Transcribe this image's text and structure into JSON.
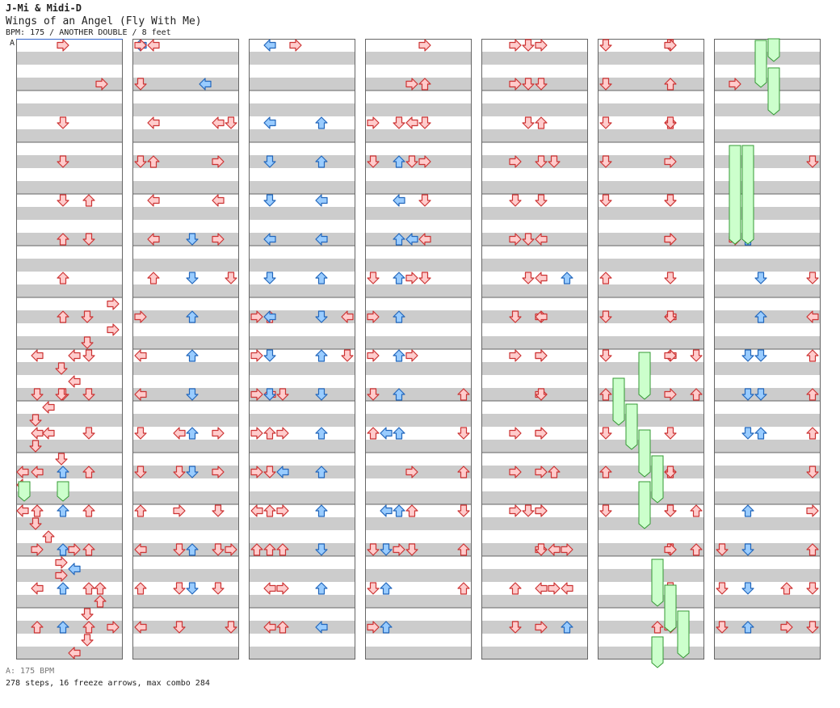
{
  "header": {
    "artist": "J-Mi & Midi-D",
    "title": "Wings of an Angel (Fly With Me)",
    "info": "BPM: 175 / ANOTHER DOUBLE / 8 feet"
  },
  "bpm_marker": {
    "label": "A",
    "bpm": 175
  },
  "footer": {
    "bpm_legend": "A: 175 BPM",
    "stats": "278 steps, 16 freeze arrows, max combo 284"
  },
  "columns": 7,
  "colors": {
    "red_arrow": "#ffcccc",
    "red_outline": "#cc3333",
    "blue_arrow": "#99ccff",
    "blue_outline": "#2266bb",
    "freeze_fill": "#ccffcc",
    "freeze_outline": "#339933",
    "band_gray": "#cccccc",
    "measure_line": "#666666"
  },
  "notes": [
    [
      8,
      "L",
      0,
      "blue"
    ],
    [
      8,
      "R",
      7,
      "red"
    ],
    [
      8,
      "L",
      8,
      "red"
    ],
    [
      8,
      "L",
      9,
      "red"
    ],
    [
      8,
      "D",
      10,
      "red"
    ],
    [
      8,
      "D",
      11,
      "red"
    ],
    [
      8,
      "U",
      12,
      "red"
    ],
    [
      8,
      "L",
      13,
      "red"
    ],
    [
      8,
      "U",
      14,
      "red"
    ],
    [
      8,
      "L",
      15,
      "red"
    ],
    [
      9,
      "L",
      0,
      "red"
    ],
    [
      9,
      "L",
      2,
      "red"
    ],
    [
      9,
      "U",
      3,
      "red"
    ],
    [
      9,
      "L",
      4,
      "red"
    ],
    [
      9,
      "L",
      5,
      "red"
    ],
    [
      9,
      "U",
      6,
      "red"
    ],
    [
      9,
      "U",
      7,
      "red"
    ],
    [
      9,
      "L",
      9,
      "red"
    ],
    [
      9,
      "U",
      10,
      "red"
    ],
    [
      9,
      "D",
      11,
      "red"
    ],
    [
      9,
      "U",
      12,
      "red"
    ],
    [
      9,
      "U",
      13,
      "red"
    ],
    [
      9,
      "L",
      14,
      "red"
    ],
    [
      9,
      "L",
      15,
      "red"
    ],
    [
      10,
      "D",
      9,
      "red"
    ],
    [
      10,
      "R",
      10,
      "red"
    ],
    [
      10,
      "L",
      11,
      "blue"
    ],
    [
      10,
      "R",
      12,
      "red"
    ],
    [
      10,
      "U",
      13,
      "red"
    ],
    [
      10,
      "R",
      14,
      "red"
    ],
    [
      10,
      "U",
      15,
      "red"
    ],
    [
      11,
      "R",
      0,
      "red"
    ],
    [
      11,
      "R",
      1,
      "red"
    ],
    [
      11,
      "L",
      2,
      "red"
    ],
    [
      11,
      "D",
      3,
      "red"
    ],
    [
      11,
      "L",
      5,
      "blue"
    ],
    [
      11,
      "R",
      6,
      "red"
    ],
    [
      11,
      "R",
      8,
      "red"
    ],
    [
      11,
      "R",
      11,
      "red"
    ],
    [
      11,
      "U",
      12,
      "red"
    ],
    [
      11,
      "D",
      13,
      "red"
    ],
    [
      12,
      "R",
      0,
      "red"
    ],
    [
      12,
      "U",
      1,
      "red"
    ],
    [
      12,
      "D",
      2,
      "red"
    ],
    [
      12,
      "R",
      3,
      "red"
    ],
    [
      12,
      "D",
      4,
      "red"
    ],
    [
      12,
      "L",
      5,
      "red"
    ],
    [
      12,
      "D",
      6,
      "red"
    ],
    [
      12,
      "R",
      7,
      "red"
    ],
    [
      12,
      "R",
      8,
      "red"
    ],
    [
      12,
      "R",
      9,
      "red"
    ],
    [
      12,
      "R",
      10,
      "red"
    ],
    [
      12,
      "R",
      12,
      "red"
    ],
    [
      12,
      "R",
      13,
      "red"
    ],
    [
      12,
      "L",
      14,
      "red"
    ],
    [
      12,
      "R",
      15,
      "red"
    ],
    [
      13,
      "D",
      3,
      "red"
    ],
    [
      13,
      "U",
      11,
      "red"
    ],
    [
      13,
      "L",
      13,
      "red"
    ],
    [
      13,
      "R",
      14,
      "red"
    ],
    [
      14,
      "U",
      6,
      "blue"
    ],
    [
      14,
      "R",
      13,
      "red"
    ],
    [
      14,
      "L",
      14,
      "red"
    ],
    [
      14,
      "U",
      15,
      "blue"
    ],
    [
      15,
      "D",
      8,
      "red"
    ],
    [
      15,
      "U",
      9,
      "red"
    ],
    [
      15,
      "U",
      12,
      "red"
    ],
    [
      15,
      "U",
      13,
      "red"
    ],
    [
      16,
      "D",
      0,
      "red"
    ],
    [
      16,
      "D",
      1,
      "red"
    ],
    [
      16,
      "D",
      2,
      "red"
    ],
    [
      16,
      "D",
      3,
      "red"
    ],
    [
      16,
      "D",
      4,
      "red"
    ],
    [
      16,
      "U",
      6,
      "red"
    ],
    [
      16,
      "D",
      7,
      "red"
    ],
    [
      16,
      "D",
      8,
      "red"
    ],
    [
      16,
      "U",
      9,
      "red"
    ],
    [
      16,
      "D",
      10,
      "red"
    ],
    [
      16,
      "U",
      11,
      "red"
    ],
    [
      16,
      "D",
      12,
      "red"
    ],
    [
      16,
      "D",
      13,
      "red"
    ],
    [
      16,
      "D",
      14,
      "red"
    ],
    [
      16,
      "D",
      15,
      "red"
    ],
    [
      18,
      "U",
      5,
      "blue"
    ],
    [
      18,
      "D",
      8,
      "blue"
    ],
    [
      18,
      "D",
      9,
      "blue"
    ],
    [
      18,
      "D",
      10,
      "blue"
    ],
    [
      18,
      "U",
      12,
      "blue"
    ],
    [
      18,
      "D",
      13,
      "blue"
    ],
    [
      18,
      "D",
      14,
      "blue"
    ],
    [
      18,
      "U",
      15,
      "blue"
    ],
    [
      19,
      "D",
      6,
      "blue"
    ],
    [
      19,
      "U",
      7,
      "blue"
    ],
    [
      19,
      "D",
      8,
      "blue"
    ],
    [
      19,
      "D",
      9,
      "blue"
    ],
    [
      19,
      "U",
      10,
      "blue"
    ],
    [
      19,
      "U",
      11,
      "blue"
    ],
    [
      19,
      "U",
      12,
      "blue"
    ],
    [
      19,
      "U",
      13,
      "blue"
    ],
    [
      19,
      "U",
      14,
      "blue"
    ],
    [
      19,
      "U",
      15,
      "blue"
    ],
    [
      21,
      "U",
      4,
      "red"
    ],
    [
      21,
      "D",
      5,
      "red"
    ],
    [
      21,
      "D",
      8,
      "red"
    ],
    [
      21,
      "D",
      9,
      "red"
    ],
    [
      21,
      "D",
      10,
      "red"
    ],
    [
      21,
      "U",
      11,
      "red"
    ],
    [
      21,
      "U",
      12,
      "red"
    ],
    [
      21,
      "U",
      13,
      "red"
    ],
    [
      21,
      "U",
      14,
      "red"
    ],
    [
      21,
      "U",
      15,
      "red"
    ],
    [
      22,
      "R",
      1,
      "red"
    ],
    [
      22,
      "L",
      2,
      "red"
    ],
    [
      22,
      "R",
      3,
      "red"
    ],
    [
      22,
      "L",
      4,
      "red"
    ],
    [
      22,
      "R",
      5,
      "red"
    ],
    [
      22,
      "R",
      10,
      "red"
    ],
    [
      22,
      "R",
      11,
      "red"
    ],
    [
      22,
      "D",
      12,
      "red"
    ],
    [
      22,
      "D",
      13,
      "red"
    ],
    [
      22,
      "D",
      14,
      "red"
    ],
    [
      23,
      "D",
      2,
      "red"
    ],
    [
      23,
      "D",
      6,
      "red"
    ],
    [
      23,
      "R",
      13,
      "red"
    ],
    [
      23,
      "D",
      15,
      "red"
    ],
    [
      24,
      "R",
      0,
      "red"
    ],
    [
      24,
      "D",
      1,
      "red"
    ],
    [
      24,
      "D",
      3,
      "red"
    ],
    [
      24,
      "R",
      7,
      "red"
    ],
    [
      24,
      "R",
      8,
      "red"
    ],
    [
      24,
      "R",
      9,
      "red"
    ],
    [
      24,
      "R",
      10,
      "red"
    ],
    [
      24,
      "R",
      11,
      "red"
    ],
    [
      24,
      "L",
      12,
      "red"
    ],
    [
      24,
      "U",
      13,
      "red"
    ],
    [
      25,
      "L",
      0,
      "blue"
    ],
    [
      25,
      "L",
      2,
      "blue"
    ],
    [
      25,
      "D",
      3,
      "blue"
    ],
    [
      25,
      "D",
      4,
      "blue"
    ],
    [
      25,
      "L",
      5,
      "blue"
    ],
    [
      25,
      "D",
      6,
      "blue"
    ],
    [
      25,
      "L",
      7,
      "blue"
    ],
    [
      25,
      "D",
      8,
      "blue"
    ],
    [
      25,
      "D",
      9,
      "blue"
    ],
    [
      25,
      "L",
      10,
      "blue"
    ],
    [
      25,
      "L",
      12,
      "blue"
    ],
    [
      25,
      "D",
      13,
      "blue"
    ],
    [
      25,
      "U",
      14,
      "blue"
    ],
    [
      25,
      "U",
      15,
      "blue"
    ],
    [
      26,
      "D",
      2,
      "red"
    ],
    [
      26,
      "U",
      3,
      "blue"
    ],
    [
      26,
      "L",
      4,
      "blue"
    ],
    [
      26,
      "U",
      5,
      "blue"
    ],
    [
      26,
      "U",
      6,
      "blue"
    ],
    [
      26,
      "U",
      7,
      "blue"
    ],
    [
      26,
      "U",
      8,
      "blue"
    ],
    [
      26,
      "U",
      9,
      "blue"
    ],
    [
      26,
      "U",
      10,
      "blue"
    ],
    [
      26,
      "U",
      12,
      "blue"
    ],
    [
      26,
      "R",
      13,
      "red"
    ],
    [
      26,
      "U",
      14,
      "red"
    ],
    [
      26,
      "D",
      15,
      "red"
    ],
    [
      28,
      "R",
      0,
      "red"
    ],
    [
      28,
      "D",
      1,
      "red"
    ],
    [
      28,
      "U",
      2,
      "red"
    ],
    [
      28,
      "D",
      3,
      "red"
    ],
    [
      28,
      "D",
      4,
      "red"
    ],
    [
      28,
      "L",
      5,
      "red"
    ],
    [
      28,
      "L",
      6,
      "red"
    ],
    [
      28,
      "L",
      7,
      "red"
    ],
    [
      28,
      "R",
      8,
      "red"
    ],
    [
      28,
      "D",
      9,
      "red"
    ],
    [
      28,
      "R",
      10,
      "red"
    ],
    [
      28,
      "R",
      11,
      "red"
    ],
    [
      28,
      "R",
      12,
      "red"
    ],
    [
      28,
      "D",
      13,
      "red"
    ],
    [
      28,
      "U",
      14,
      "red"
    ],
    [
      28,
      "U",
      15,
      "red"
    ],
    [
      29,
      "D",
      0,
      "red"
    ],
    [
      29,
      "U",
      1,
      "red"
    ],
    [
      29,
      "U",
      2,
      "red"
    ],
    [
      29,
      "R",
      3,
      "red"
    ],
    [
      29,
      "D",
      4,
      "red"
    ],
    [
      29,
      "R",
      5,
      "red"
    ],
    [
      29,
      "D",
      6,
      "red"
    ],
    [
      29,
      "L",
      7,
      "red"
    ],
    [
      29,
      "L",
      8,
      "red"
    ],
    [
      29,
      "R",
      9,
      "red"
    ],
    [
      29,
      "D",
      10,
      "red"
    ],
    [
      29,
      "U",
      11,
      "red"
    ],
    [
      29,
      "D",
      12,
      "red"
    ],
    [
      29,
      "D",
      13,
      "red"
    ],
    [
      29,
      "U",
      14,
      "red"
    ],
    [
      29,
      "R",
      15,
      "red"
    ],
    [
      31,
      "D",
      3,
      "red"
    ],
    [
      31,
      "D",
      6,
      "red"
    ],
    [
      31,
      "L",
      7,
      "red"
    ],
    [
      31,
      "U",
      8,
      "red"
    ],
    [
      31,
      "U",
      9,
      "red"
    ],
    [
      31,
      "U",
      10,
      "red"
    ],
    [
      31,
      "D",
      11,
      "red"
    ],
    [
      31,
      "R",
      12,
      "red"
    ],
    [
      31,
      "U",
      13,
      "red"
    ],
    [
      31,
      "D",
      14,
      "red"
    ],
    [
      31,
      "D",
      15,
      "red"
    ],
    [
      33,
      "R",
      1,
      "red"
    ],
    [
      33,
      "U",
      4,
      "red"
    ],
    [
      33,
      "R",
      5,
      "red"
    ],
    [
      33,
      "L",
      8,
      "red"
    ],
    [
      33,
      "D",
      9,
      "red"
    ],
    [
      33,
      "L",
      10,
      "red"
    ],
    [
      33,
      "L",
      11,
      "red"
    ],
    [
      33,
      "U",
      12,
      "red"
    ],
    [
      33,
      "R",
      13,
      "red"
    ],
    [
      33,
      "L",
      14,
      "red"
    ],
    [
      33,
      "U",
      15,
      "red"
    ],
    [
      35,
      "R",
      0,
      "red"
    ],
    [
      35,
      "D",
      2,
      "red"
    ],
    [
      35,
      "D",
      3,
      "red"
    ],
    [
      35,
      "D",
      4,
      "red"
    ],
    [
      35,
      "U",
      5,
      "red"
    ],
    [
      35,
      "U",
      6,
      "red"
    ],
    [
      35,
      "U",
      7,
      "red"
    ],
    [
      35,
      "D",
      9,
      "red"
    ],
    [
      35,
      "L",
      10,
      "red"
    ],
    [
      35,
      "D",
      11,
      "red"
    ],
    [
      35,
      "R",
      12,
      "red"
    ],
    [
      35,
      "D",
      13,
      "red"
    ],
    [
      35,
      "D",
      14,
      "red"
    ],
    [
      35,
      "D",
      15,
      "red"
    ],
    [
      36,
      "D",
      5,
      "blue"
    ],
    [
      36,
      "D",
      6,
      "blue"
    ],
    [
      36,
      "U",
      7,
      "blue"
    ],
    [
      36,
      "U",
      8,
      "blue"
    ],
    [
      36,
      "D",
      9,
      "blue"
    ],
    [
      36,
      "U",
      10,
      "blue"
    ],
    [
      36,
      "D",
      11,
      "blue"
    ],
    [
      36,
      "U",
      13,
      "blue"
    ],
    [
      36,
      "D",
      14,
      "blue"
    ],
    [
      37,
      "L",
      1,
      "blue"
    ],
    [
      37,
      "U",
      2,
      "blue"
    ],
    [
      37,
      "U",
      3,
      "blue"
    ],
    [
      37,
      "L",
      4,
      "blue"
    ],
    [
      37,
      "L",
      5,
      "blue"
    ],
    [
      37,
      "U",
      6,
      "blue"
    ],
    [
      37,
      "D",
      7,
      "blue"
    ],
    [
      37,
      "U",
      8,
      "blue"
    ],
    [
      37,
      "D",
      9,
      "blue"
    ],
    [
      37,
      "U",
      10,
      "blue"
    ],
    [
      37,
      "U",
      11,
      "blue"
    ],
    [
      37,
      "U",
      12,
      "blue"
    ],
    [
      37,
      "D",
      13,
      "blue"
    ],
    [
      37,
      "U",
      14,
      "blue"
    ],
    [
      37,
      "L",
      15,
      "blue"
    ],
    [
      39,
      "L",
      7,
      "red"
    ],
    [
      39,
      "D",
      8,
      "red"
    ],
    [
      39,
      "U",
      9,
      "red"
    ],
    [
      39,
      "D",
      10,
      "red"
    ],
    [
      39,
      "U",
      11,
      "red"
    ],
    [
      39,
      "D",
      12,
      "red"
    ],
    [
      39,
      "U",
      13,
      "red"
    ],
    [
      39,
      "U",
      14,
      "red"
    ],
    [
      40,
      "R",
      2,
      "red"
    ],
    [
      40,
      "D",
      3,
      "red"
    ],
    [
      40,
      "D",
      6,
      "red"
    ],
    [
      40,
      "R",
      7,
      "red"
    ],
    [
      40,
      "R",
      8,
      "red"
    ],
    [
      40,
      "D",
      9,
      "red"
    ],
    [
      40,
      "U",
      10,
      "red"
    ],
    [
      40,
      "D",
      13,
      "red"
    ],
    [
      40,
      "D",
      14,
      "red"
    ],
    [
      40,
      "R",
      15,
      "red"
    ],
    [
      42,
      "R",
      0,
      "red"
    ],
    [
      42,
      "R",
      1,
      "red"
    ],
    [
      42,
      "R",
      3,
      "red"
    ],
    [
      42,
      "D",
      4,
      "red"
    ],
    [
      42,
      "R",
      5,
      "red"
    ],
    [
      42,
      "D",
      7,
      "red"
    ],
    [
      42,
      "R",
      8,
      "red"
    ],
    [
      42,
      "R",
      10,
      "red"
    ],
    [
      42,
      "R",
      11,
      "red"
    ],
    [
      42,
      "R",
      12,
      "red"
    ],
    [
      43,
      "D",
      0,
      "red"
    ],
    [
      43,
      "D",
      1,
      "red"
    ],
    [
      43,
      "D",
      2,
      "red"
    ],
    [
      43,
      "D",
      5,
      "red"
    ],
    [
      43,
      "D",
      6,
      "red"
    ],
    [
      43,
      "D",
      12,
      "red"
    ],
    [
      45,
      "R",
      0,
      "red"
    ],
    [
      45,
      "D",
      2,
      "red"
    ],
    [
      45,
      "D",
      4,
      "red"
    ],
    [
      45,
      "R",
      5,
      "red"
    ],
    [
      45,
      "D",
      7,
      "red"
    ],
    [
      45,
      "R",
      8,
      "red"
    ],
    [
      45,
      "D",
      11,
      "red"
    ],
    [
      45,
      "D",
      12,
      "red"
    ],
    [
      45,
      "R",
      13,
      "red"
    ],
    [
      45,
      "D",
      14,
      "red"
    ],
    [
      45,
      "R",
      15,
      "red"
    ]
  ],
  "note_overrides": [
    [
      0,
      3,
      0,
      "L",
      "red"
    ],
    [
      0,
      3,
      1,
      "L",
      "red"
    ],
    [
      0,
      3,
      2,
      "L",
      "red"
    ],
    [
      0,
      3,
      3,
      "D",
      "red"
    ],
    [
      0,
      3,
      4,
      "D",
      "red"
    ],
    [
      0,
      3,
      5,
      "R",
      "red"
    ],
    [
      0,
      3,
      6,
      "R",
      "red"
    ],
    [
      0,
      3,
      7,
      "D",
      "red"
    ],
    [
      0,
      3,
      8,
      "U",
      "red"
    ],
    [
      0,
      3,
      9,
      "D",
      "red"
    ],
    [
      0,
      3,
      10,
      "R",
      "red"
    ],
    [
      0,
      3,
      11,
      "D",
      "red"
    ],
    [
      0,
      3,
      12,
      "L",
      "red"
    ],
    [
      0,
      3,
      13,
      "D",
      "red"
    ],
    [
      0,
      3,
      14,
      "U",
      "red"
    ],
    [
      0,
      3,
      15,
      "D",
      "red"
    ]
  ],
  "freezes": [
    [
      0,
      2,
      9.5,
      0.3,
      "arrow"
    ],
    [
      0,
      4,
      9.5,
      0.3,
      "arrow"
    ],
    [
      5,
      0,
      7.5,
      2,
      "d"
    ]
  ]
}
